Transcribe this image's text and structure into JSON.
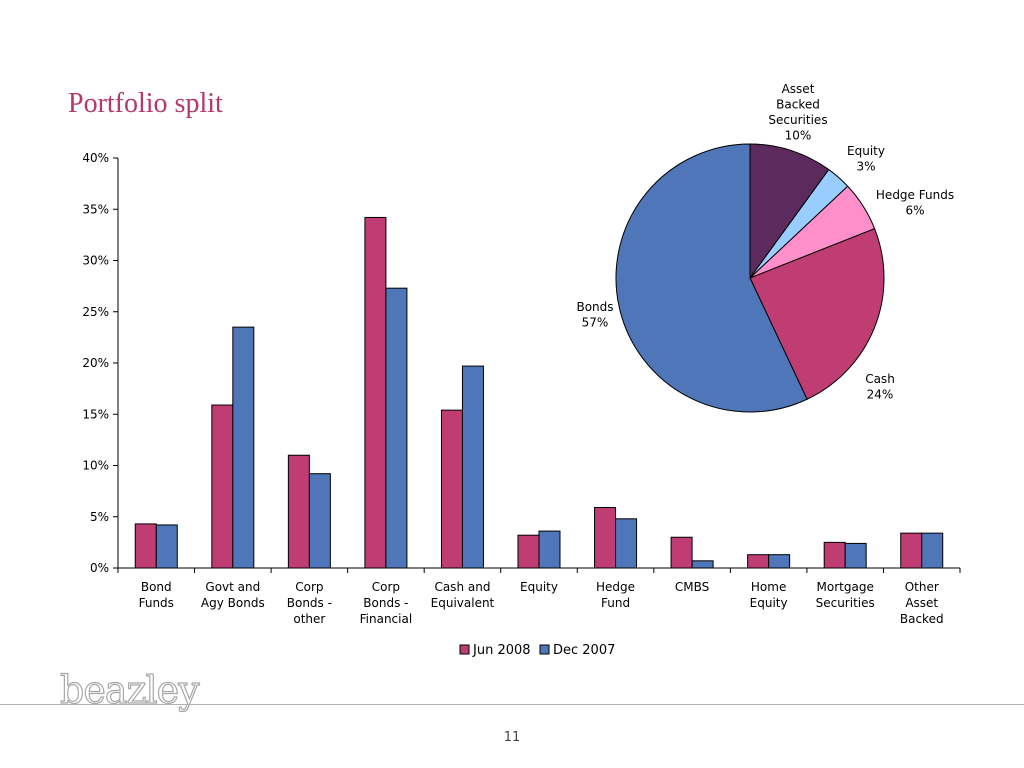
{
  "slide": {
    "title": "Portfolio split",
    "page_number": "11",
    "logo_text": "beazley"
  },
  "chart_data": [
    {
      "type": "bar",
      "title": "",
      "xlabel": "",
      "ylabel": "",
      "ylim": [
        0,
        0.4
      ],
      "ytick_labels": [
        "0%",
        "5%",
        "10%",
        "15%",
        "20%",
        "25%",
        "30%",
        "35%",
        "40%"
      ],
      "categories": [
        [
          "Bond",
          "Funds"
        ],
        [
          "Govt and",
          "Agy Bonds"
        ],
        [
          "Corp",
          "Bonds -",
          "other"
        ],
        [
          "Corp",
          "Bonds -",
          "Financial"
        ],
        [
          "Cash and",
          "Equivalent"
        ],
        [
          "Equity"
        ],
        [
          "Hedge",
          "Fund"
        ],
        [
          "CMBS"
        ],
        [
          "Home",
          "Equity"
        ],
        [
          "Mortgage",
          "Securities"
        ],
        [
          "Other",
          "Asset",
          "Backed"
        ]
      ],
      "series": [
        {
          "name": "Jun 2008",
          "color": "#c03d74",
          "values": [
            0.043,
            0.159,
            0.11,
            0.342,
            0.154,
            0.032,
            0.059,
            0.03,
            0.013,
            0.025,
            0.034
          ]
        },
        {
          "name": "Dec 2007",
          "color": "#4f76b8",
          "values": [
            0.042,
            0.235,
            0.092,
            0.273,
            0.197,
            0.036,
            0.048,
            0.007,
            0.013,
            0.024,
            0.034
          ]
        }
      ],
      "legend": "bottom",
      "grid": false
    },
    {
      "type": "pie",
      "slices": [
        {
          "label": [
            "Asset",
            "Backed",
            "Securities",
            "10%"
          ],
          "value": 10,
          "color": "#5c2a5c"
        },
        {
          "label": [
            "Equity",
            "3%"
          ],
          "value": 3,
          "color": "#99ccff"
        },
        {
          "label": [
            "Hedge Funds",
            "6%"
          ],
          "value": 6,
          "color": "#ff8fca"
        },
        {
          "label": [
            "Cash",
            "24%"
          ],
          "value": 24,
          "color": "#c03d74"
        },
        {
          "label": [
            "Bonds",
            "57%"
          ],
          "value": 57,
          "color": "#4f76b8"
        }
      ]
    }
  ]
}
